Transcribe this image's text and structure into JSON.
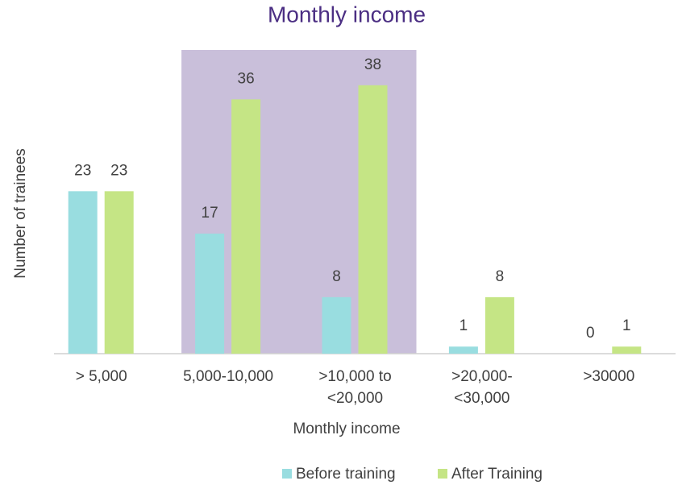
{
  "chart_data": {
    "type": "bar",
    "title": "Monthly income",
    "x_label": "Monthly income",
    "y_label": "Number of trainees",
    "categories": [
      "> 5,000",
      "5,000-10,000",
      ">10,000 to\n<20,000",
      ">20,000-\n<30,000",
      ">30000"
    ],
    "series": [
      {
        "name": "Before training",
        "color": "#99dde0",
        "values": [
          23,
          17,
          8,
          1,
          0
        ]
      },
      {
        "name": "After Training",
        "color": "#c5e585",
        "values": [
          23,
          36,
          38,
          8,
          1
        ]
      }
    ],
    "ylim": [
      0,
      43
    ],
    "highlight": {
      "from": 1,
      "to": 2,
      "color": "#c9bfda"
    },
    "legend": "bottom"
  }
}
